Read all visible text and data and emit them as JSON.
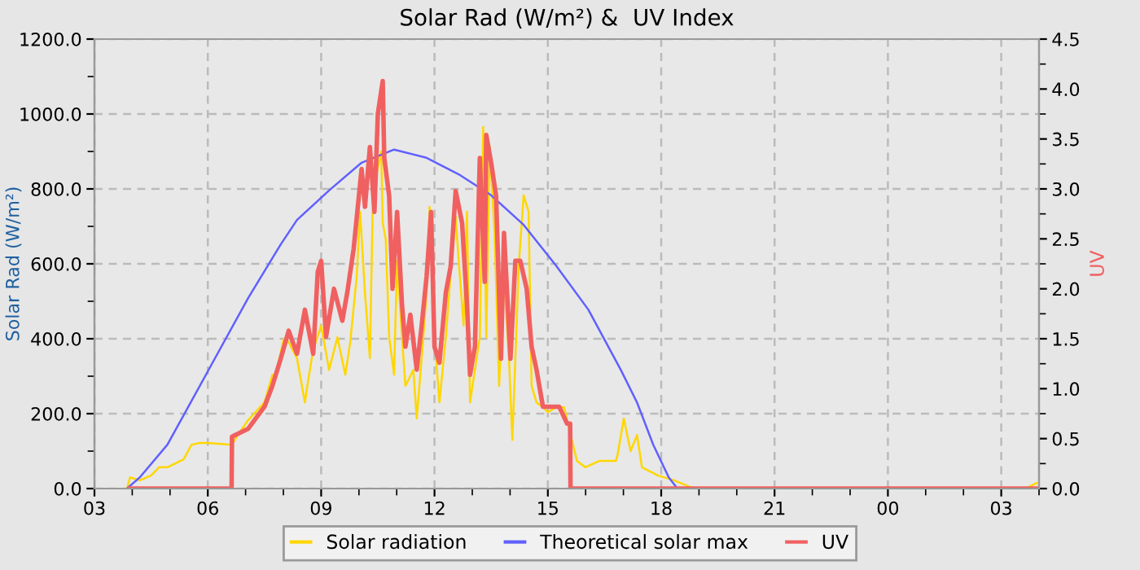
{
  "chart_data": {
    "type": "line",
    "title": "Solar Rad (W/m²) &  UV Index",
    "ylabel": "Solar Rad (W/m²)",
    "y2label": "UV",
    "xlim": [
      3,
      28
    ],
    "xticks": [
      {
        "value": 3,
        "label": "03"
      },
      {
        "value": 6,
        "label": "06"
      },
      {
        "value": 9,
        "label": "09"
      },
      {
        "value": 12,
        "label": "12"
      },
      {
        "value": 15,
        "label": "15"
      },
      {
        "value": 18,
        "label": "18"
      },
      {
        "value": 21,
        "label": "21"
      },
      {
        "value": 24,
        "label": "00"
      },
      {
        "value": 27,
        "label": "03"
      }
    ],
    "ylim": [
      0,
      1200
    ],
    "yticks": [
      {
        "value": 0,
        "label": "0.0"
      },
      {
        "value": 200,
        "label": "200.0"
      },
      {
        "value": 400,
        "label": "400.0"
      },
      {
        "value": 600,
        "label": "600.0"
      },
      {
        "value": 800,
        "label": "800.0"
      },
      {
        "value": 1000,
        "label": "1000.0"
      },
      {
        "value": 1200,
        "label": "1200.0"
      }
    ],
    "y2lim": [
      0,
      4.5
    ],
    "y2ticks": [
      {
        "value": 0,
        "label": "0.0"
      },
      {
        "value": 0.5,
        "label": "0.5"
      },
      {
        "value": 1,
        "label": "1.0"
      },
      {
        "value": 1.5,
        "label": "1.5"
      },
      {
        "value": 2,
        "label": "2.0"
      },
      {
        "value": 2.5,
        "label": "2.5"
      },
      {
        "value": 3,
        "label": "3.0"
      },
      {
        "value": 3.5,
        "label": "3.5"
      },
      {
        "value": 4,
        "label": "4.0"
      },
      {
        "value": 4.5,
        "label": "4.5"
      }
    ],
    "grid": true,
    "legend": "bottom",
    "marker": "none",
    "line_style": "solid",
    "series": [
      {
        "name": "Solar radiation",
        "color": "#ffd700",
        "x": [
          3.86,
          3.94,
          4.2,
          4.5,
          4.71,
          4.93,
          5.36,
          5.57,
          5.79,
          6.0,
          6.64,
          6.77,
          7.07,
          7.5,
          7.71,
          7.8,
          8.01,
          8.14,
          8.36,
          8.57,
          8.66,
          8.79,
          9.0,
          9.21,
          9.43,
          9.64,
          9.77,
          9.94,
          10.03,
          10.16,
          10.29,
          10.37,
          10.5,
          10.59,
          10.63,
          10.71,
          10.8,
          10.93,
          11.01,
          11.14,
          11.23,
          11.44,
          11.53,
          11.66,
          11.79,
          11.87,
          12.0,
          12.13,
          12.3,
          12.43,
          12.56,
          12.64,
          12.77,
          12.86,
          12.94,
          13.07,
          13.2,
          13.29,
          13.37,
          13.46,
          13.59,
          13.71,
          13.84,
          13.97,
          14.06,
          14.14,
          14.23,
          14.36,
          14.49,
          14.57,
          14.7,
          14.87,
          15.0,
          15.21,
          15.43,
          15.56,
          15.77,
          15.99,
          16.37,
          16.8,
          16.84,
          17.01,
          17.19,
          17.36,
          17.49,
          17.91,
          18.34,
          18.77,
          19.07,
          27.64,
          27.94
        ],
        "values": [
          0,
          30,
          22,
          35,
          57,
          57,
          78,
          117,
          122,
          122,
          117,
          139,
          183,
          230,
          304,
          304,
          400,
          391,
          348,
          230,
          291,
          370,
          435,
          317,
          404,
          304,
          391,
          565,
          739,
          522,
          348,
          783,
          857,
          900,
          709,
          665,
          404,
          304,
          609,
          404,
          274,
          317,
          187,
          348,
          522,
          752,
          404,
          230,
          404,
          578,
          726,
          609,
          435,
          739,
          230,
          317,
          404,
          965,
          404,
          913,
          683,
          274,
          565,
          348,
          130,
          348,
          596,
          783,
          739,
          274,
          230,
          217,
          204,
          217,
          217,
          161,
          74,
          57,
          74,
          74,
          87,
          187,
          100,
          143,
          57,
          35,
          22,
          4,
          0,
          0,
          15
        ]
      },
      {
        "name": "Theoretical solar max",
        "color": "#6060ff",
        "x": [
          3.86,
          4.2,
          4.93,
          6.0,
          7.07,
          7.93,
          8.36,
          9.21,
          10.07,
          10.93,
          11.79,
          12.64,
          13.5,
          14.36,
          15.21,
          16.07,
          16.93,
          17.36,
          17.79,
          18.2,
          18.43
        ],
        "values": [
          0,
          30,
          117,
          313,
          509,
          652,
          717,
          796,
          870,
          905,
          883,
          839,
          783,
          704,
          596,
          478,
          317,
          230,
          117,
          30,
          0
        ]
      },
      {
        "name": "UV",
        "color": "#f06060",
        "axis": "y2",
        "x": [
          3.94,
          6.63,
          6.64,
          7.07,
          7.5,
          7.71,
          7.93,
          8.14,
          8.36,
          8.57,
          8.79,
          8.91,
          9.0,
          9.13,
          9.34,
          9.56,
          9.69,
          9.86,
          10.07,
          10.16,
          10.29,
          10.41,
          10.5,
          10.63,
          10.67,
          10.8,
          10.89,
          11.01,
          11.14,
          11.23,
          11.36,
          11.53,
          11.66,
          11.79,
          11.91,
          12.0,
          12.13,
          12.3,
          12.43,
          12.56,
          12.73,
          12.86,
          12.94,
          13.07,
          13.2,
          13.33,
          13.37,
          13.5,
          13.63,
          13.76,
          13.84,
          14.01,
          14.14,
          14.27,
          14.44,
          14.57,
          14.7,
          14.87,
          15.3,
          15.51,
          15.59,
          15.6,
          27.96
        ],
        "values": [
          0,
          0,
          0.52,
          0.6,
          0.82,
          1.03,
          1.3,
          1.58,
          1.35,
          1.79,
          1.35,
          2.17,
          2.28,
          1.52,
          2.0,
          1.68,
          1.96,
          2.4,
          3.2,
          2.82,
          3.42,
          2.77,
          3.75,
          4.08,
          3.31,
          2.93,
          2.0,
          2.77,
          1.84,
          1.42,
          1.74,
          1.19,
          1.63,
          2.12,
          2.77,
          1.42,
          1.26,
          1.96,
          2.23,
          2.98,
          2.66,
          1.84,
          1.14,
          1.42,
          3.31,
          2.07,
          3.54,
          3.26,
          2.93,
          1.3,
          2.56,
          1.3,
          2.28,
          2.28,
          2.0,
          1.42,
          1.19,
          0.82,
          0.82,
          0.65,
          0.65,
          0,
          0
        ]
      }
    ]
  }
}
